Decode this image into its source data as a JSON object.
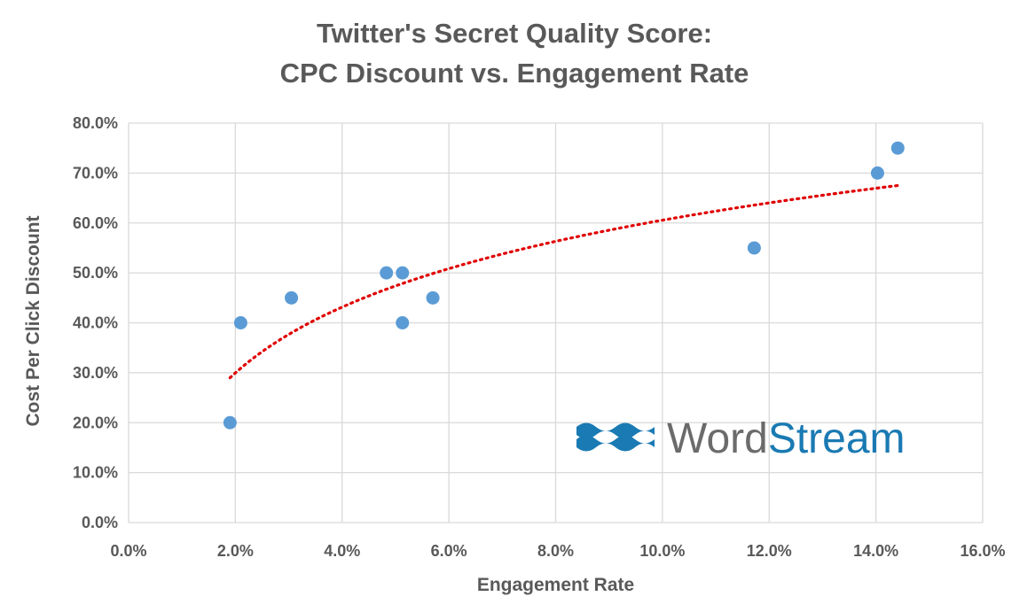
{
  "chart_data": {
    "type": "scatter",
    "title": [
      "Twitter's Secret Quality Score:",
      "CPC Discount vs. Engagement Rate"
    ],
    "xlabel": "Engagement Rate",
    "ylabel": "Cost Per Click Discount",
    "xlim": [
      0,
      0.16
    ],
    "ylim": [
      0,
      0.8
    ],
    "x_ticks": [
      "0.0%",
      "2.0%",
      "4.0%",
      "6.0%",
      "8.0%",
      "10.0%",
      "12.0%",
      "14.0%",
      "16.0%"
    ],
    "y_ticks": [
      "0.0%",
      "10.0%",
      "20.0%",
      "30.0%",
      "40.0%",
      "50.0%",
      "60.0%",
      "70.0%",
      "80.0%"
    ],
    "grid": true,
    "legend": "none",
    "points": [
      {
        "x": 0.019,
        "y": 0.2
      },
      {
        "x": 0.021,
        "y": 0.4
      },
      {
        "x": 0.0305,
        "y": 0.45
      },
      {
        "x": 0.0483,
        "y": 0.5
      },
      {
        "x": 0.0513,
        "y": 0.5
      },
      {
        "x": 0.0513,
        "y": 0.4
      },
      {
        "x": 0.057,
        "y": 0.45
      },
      {
        "x": 0.1172,
        "y": 0.55
      },
      {
        "x": 0.1403,
        "y": 0.7
      },
      {
        "x": 0.1441,
        "y": 0.75
      }
    ],
    "trendline": {
      "type": "logarithmic",
      "x_range": [
        0.019,
        0.1441
      ],
      "y_at_start": 0.29,
      "y_at_end": 0.675
    },
    "colors": {
      "points": "#5b9bd5",
      "trendline": "#e00000",
      "grid": "#d9d9d9",
      "text": "#595959"
    }
  },
  "watermark": {
    "part1": "Word",
    "part2": "Stream",
    "color_part1": "#6b6b6b",
    "color_part2": "#1a7ab3",
    "icon": "waves-icon"
  }
}
